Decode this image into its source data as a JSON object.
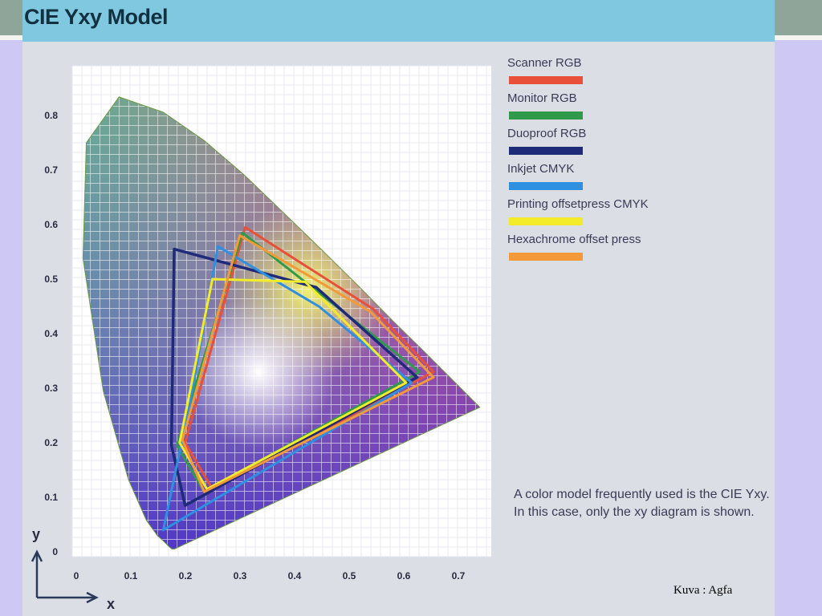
{
  "slide": {
    "title": "CIE Yxy Model",
    "credit": "Kuva : Agfa",
    "caption": "A color model frequently used is the CIE Yxy. In this case, only the xy diagram is shown."
  },
  "legend": [
    {
      "label": "Scanner RGB",
      "color": "#e8503a"
    },
    {
      "label": "Monitor RGB",
      "color": "#2f9a4a"
    },
    {
      "label": "Duoproof RGB",
      "color": "#1f2a78"
    },
    {
      "label": "Inkjet CMYK",
      "color": "#2f8fe0"
    },
    {
      "label": "Printing offsetpress CMYK",
      "color": "#f2ec2a"
    },
    {
      "label": "Hexachrome offset press",
      "color": "#f29a3a"
    }
  ],
  "chart_data": {
    "type": "diagram",
    "xlabel": "x",
    "ylabel": "y",
    "xlim": [
      0,
      0.75
    ],
    "ylim": [
      0,
      0.85
    ],
    "x_ticks": [
      "0",
      "0.1",
      "0.2",
      "0.3",
      "0.4",
      "0.5",
      "0.6",
      "0.7"
    ],
    "y_ticks": [
      "0",
      "0.1",
      "0.2",
      "0.3",
      "0.4",
      "0.5",
      "0.6",
      "0.7",
      "0.8"
    ],
    "grid": true,
    "spectral_locus": [
      [
        0.175,
        0.005
      ],
      [
        0.174,
        0.005
      ],
      [
        0.173,
        0.005
      ],
      [
        0.171,
        0.005
      ],
      [
        0.166,
        0.009
      ],
      [
        0.157,
        0.018
      ],
      [
        0.144,
        0.03
      ],
      [
        0.124,
        0.058
      ],
      [
        0.091,
        0.133
      ],
      [
        0.045,
        0.295
      ],
      [
        0.008,
        0.538
      ],
      [
        0.014,
        0.75
      ],
      [
        0.074,
        0.834
      ],
      [
        0.155,
        0.806
      ],
      [
        0.23,
        0.754
      ],
      [
        0.302,
        0.692
      ],
      [
        0.373,
        0.624
      ],
      [
        0.444,
        0.555
      ],
      [
        0.513,
        0.487
      ],
      [
        0.575,
        0.424
      ],
      [
        0.627,
        0.373
      ],
      [
        0.666,
        0.334
      ],
      [
        0.691,
        0.309
      ],
      [
        0.735,
        0.265
      ]
    ],
    "series": [
      {
        "name": "Scanner RGB",
        "points": [
          [
            0.305,
            0.595
          ],
          [
            0.54,
            0.445
          ],
          [
            0.65,
            0.33
          ],
          [
            0.245,
            0.115
          ],
          [
            0.195,
            0.2
          ]
        ]
      },
      {
        "name": "Monitor RGB",
        "points": [
          [
            0.3,
            0.585
          ],
          [
            0.625,
            0.33
          ],
          [
            0.23,
            0.11
          ],
          [
            0.18,
            0.195
          ]
        ]
      },
      {
        "name": "Duoproof RGB",
        "points": [
          [
            0.175,
            0.555
          ],
          [
            0.435,
            0.485
          ],
          [
            0.62,
            0.32
          ],
          [
            0.195,
            0.085
          ],
          [
            0.17,
            0.195
          ]
        ]
      },
      {
        "name": "Inkjet CMYK",
        "points": [
          [
            0.255,
            0.56
          ],
          [
            0.44,
            0.45
          ],
          [
            0.61,
            0.31
          ],
          [
            0.155,
            0.04
          ],
          [
            0.205,
            0.28
          ]
        ]
      },
      {
        "name": "Printing offsetpress CMYK",
        "points": [
          [
            0.245,
            0.5
          ],
          [
            0.415,
            0.495
          ],
          [
            0.6,
            0.31
          ],
          [
            0.235,
            0.115
          ],
          [
            0.185,
            0.2
          ]
        ]
      },
      {
        "name": "Hexachrome offset press",
        "points": [
          [
            0.295,
            0.58
          ],
          [
            0.535,
            0.44
          ],
          [
            0.65,
            0.32
          ],
          [
            0.23,
            0.11
          ],
          [
            0.19,
            0.205
          ]
        ]
      }
    ]
  }
}
